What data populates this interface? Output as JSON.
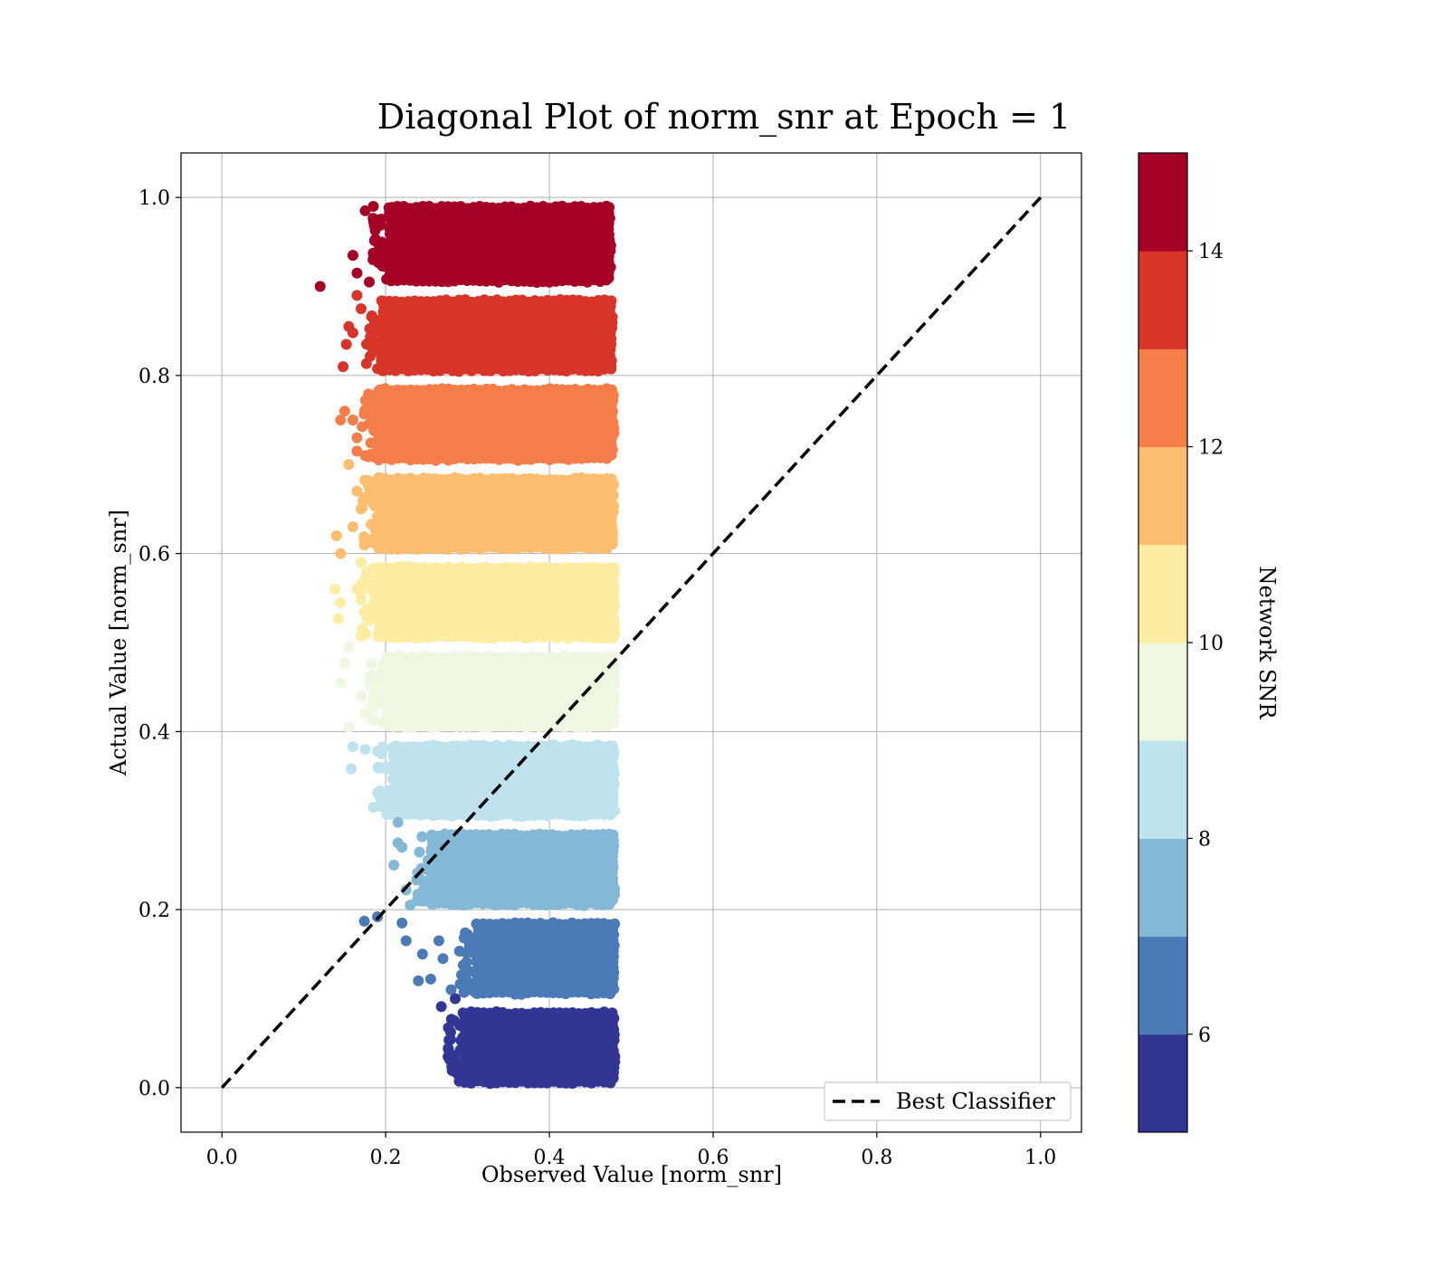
{
  "chart_data": {
    "type": "scatter",
    "title": "Diagonal Plot of norm_snr at Epoch = 1",
    "xlabel": "Observed Value [norm_snr]",
    "ylabel": "Actual Value [norm_snr]",
    "xlim": [
      -0.05,
      1.05
    ],
    "ylim": [
      -0.05,
      1.05
    ],
    "xticks": [
      "0.0",
      "0.2",
      "0.4",
      "0.6",
      "0.8",
      "1.0"
    ],
    "yticks": [
      "0.0",
      "0.2",
      "0.4",
      "0.6",
      "0.8",
      "1.0"
    ],
    "grid": true,
    "colorbar": {
      "label": "Network SNR",
      "range": [
        5,
        15
      ],
      "ticks": [
        "6",
        "8",
        "10",
        "12",
        "14"
      ],
      "colormap": "RdYlBu_r",
      "colors": [
        "#313695",
        "#4a7bb7",
        "#83b8d7",
        "#bfe3ee",
        "#eef7df",
        "#fdeda2",
        "#fdbe70",
        "#f57d4a",
        "#d7352a",
        "#a50026"
      ]
    },
    "bands": [
      {
        "snr_range": [
          5,
          6
        ],
        "y_range": [
          0.0,
          0.09
        ],
        "x_range": [
          0.29,
          0.485
        ],
        "color": "#313695"
      },
      {
        "snr_range": [
          6,
          7
        ],
        "y_range": [
          0.1,
          0.19
        ],
        "x_range": [
          0.305,
          0.485
        ],
        "color": "#4a7bb7"
      },
      {
        "snr_range": [
          7,
          8
        ],
        "y_range": [
          0.2,
          0.29
        ],
        "x_range": [
          0.25,
          0.485
        ],
        "color": "#83b8d7"
      },
      {
        "snr_range": [
          8,
          9
        ],
        "y_range": [
          0.3,
          0.39
        ],
        "x_range": [
          0.205,
          0.485
        ],
        "color": "#bfe3ee"
      },
      {
        "snr_range": [
          9,
          10
        ],
        "y_range": [
          0.4,
          0.49
        ],
        "x_range": [
          0.195,
          0.485
        ],
        "color": "#eef7df"
      },
      {
        "snr_range": [
          10,
          11
        ],
        "y_range": [
          0.5,
          0.59
        ],
        "x_range": [
          0.185,
          0.485
        ],
        "color": "#fdeda2"
      },
      {
        "snr_range": [
          11,
          12
        ],
        "y_range": [
          0.6,
          0.69
        ],
        "x_range": [
          0.185,
          0.484
        ],
        "color": "#fdbe70"
      },
      {
        "snr_range": [
          12,
          13
        ],
        "y_range": [
          0.7,
          0.79
        ],
        "x_range": [
          0.185,
          0.484
        ],
        "color": "#f57d4a"
      },
      {
        "snr_range": [
          13,
          14
        ],
        "y_range": [
          0.8,
          0.89
        ],
        "x_range": [
          0.19,
          0.482
        ],
        "color": "#d7352a"
      },
      {
        "snr_range": [
          14,
          15
        ],
        "y_range": [
          0.9,
          0.995
        ],
        "x_range": [
          0.2,
          0.48
        ],
        "color": "#a50026"
      }
    ],
    "outliers": [
      {
        "x": 0.12,
        "y": 0.9,
        "color": "#a50026"
      },
      {
        "x": 0.16,
        "y": 0.935,
        "color": "#a50026"
      },
      {
        "x": 0.165,
        "y": 0.915,
        "color": "#a50026"
      },
      {
        "x": 0.175,
        "y": 0.985,
        "color": "#a50026"
      },
      {
        "x": 0.18,
        "y": 0.905,
        "color": "#a50026"
      },
      {
        "x": 0.185,
        "y": 0.99,
        "color": "#a50026"
      },
      {
        "x": 0.148,
        "y": 0.81,
        "color": "#d7352a"
      },
      {
        "x": 0.152,
        "y": 0.835,
        "color": "#d7352a"
      },
      {
        "x": 0.155,
        "y": 0.855,
        "color": "#d7352a"
      },
      {
        "x": 0.16,
        "y": 0.848,
        "color": "#d7352a"
      },
      {
        "x": 0.165,
        "y": 0.89,
        "color": "#d7352a"
      },
      {
        "x": 0.17,
        "y": 0.875,
        "color": "#d7352a"
      },
      {
        "x": 0.145,
        "y": 0.75,
        "color": "#f57d4a"
      },
      {
        "x": 0.15,
        "y": 0.76,
        "color": "#f57d4a"
      },
      {
        "x": 0.16,
        "y": 0.75,
        "color": "#f57d4a"
      },
      {
        "x": 0.165,
        "y": 0.73,
        "color": "#f57d4a"
      },
      {
        "x": 0.165,
        "y": 0.715,
        "color": "#f57d4a"
      },
      {
        "x": 0.175,
        "y": 0.71,
        "color": "#f57d4a"
      },
      {
        "x": 0.155,
        "y": 0.7,
        "color": "#fdbe70"
      },
      {
        "x": 0.14,
        "y": 0.62,
        "color": "#fdbe70"
      },
      {
        "x": 0.145,
        "y": 0.6,
        "color": "#fdbe70"
      },
      {
        "x": 0.16,
        "y": 0.63,
        "color": "#fdbe70"
      },
      {
        "x": 0.165,
        "y": 0.67,
        "color": "#fdbe70"
      },
      {
        "x": 0.17,
        "y": 0.65,
        "color": "#fdbe70"
      },
      {
        "x": 0.138,
        "y": 0.56,
        "color": "#fdeda2"
      },
      {
        "x": 0.142,
        "y": 0.527,
        "color": "#fdeda2"
      },
      {
        "x": 0.145,
        "y": 0.545,
        "color": "#fdeda2"
      },
      {
        "x": 0.165,
        "y": 0.56,
        "color": "#fdeda2"
      },
      {
        "x": 0.17,
        "y": 0.59,
        "color": "#fdeda2"
      },
      {
        "x": 0.145,
        "y": 0.455,
        "color": "#eef7df"
      },
      {
        "x": 0.15,
        "y": 0.477,
        "color": "#eef7df"
      },
      {
        "x": 0.155,
        "y": 0.495,
        "color": "#eef7df"
      },
      {
        "x": 0.155,
        "y": 0.405,
        "color": "#eef7df"
      },
      {
        "x": 0.17,
        "y": 0.44,
        "color": "#eef7df"
      },
      {
        "x": 0.175,
        "y": 0.42,
        "color": "#eef7df"
      },
      {
        "x": 0.158,
        "y": 0.358,
        "color": "#bfe3ee"
      },
      {
        "x": 0.16,
        "y": 0.383,
        "color": "#bfe3ee"
      },
      {
        "x": 0.175,
        "y": 0.38,
        "color": "#bfe3ee"
      },
      {
        "x": 0.185,
        "y": 0.315,
        "color": "#bfe3ee"
      },
      {
        "x": 0.19,
        "y": 0.378,
        "color": "#bfe3ee"
      },
      {
        "x": 0.195,
        "y": 0.32,
        "color": "#bfe3ee"
      },
      {
        "x": 0.21,
        "y": 0.25,
        "color": "#83b8d7"
      },
      {
        "x": 0.215,
        "y": 0.275,
        "color": "#83b8d7"
      },
      {
        "x": 0.22,
        "y": 0.27,
        "color": "#83b8d7"
      },
      {
        "x": 0.225,
        "y": 0.222,
        "color": "#83b8d7"
      },
      {
        "x": 0.23,
        "y": 0.205,
        "color": "#83b8d7"
      },
      {
        "x": 0.215,
        "y": 0.298,
        "color": "#83b8d7"
      },
      {
        "x": 0.174,
        "y": 0.187,
        "color": "#4a7bb7"
      },
      {
        "x": 0.19,
        "y": 0.192,
        "color": "#4a7bb7"
      },
      {
        "x": 0.22,
        "y": 0.185,
        "color": "#4a7bb7"
      },
      {
        "x": 0.225,
        "y": 0.165,
        "color": "#4a7bb7"
      },
      {
        "x": 0.24,
        "y": 0.12,
        "color": "#4a7bb7"
      },
      {
        "x": 0.245,
        "y": 0.15,
        "color": "#4a7bb7"
      },
      {
        "x": 0.255,
        "y": 0.122,
        "color": "#4a7bb7"
      },
      {
        "x": 0.27,
        "y": 0.145,
        "color": "#4a7bb7"
      },
      {
        "x": 0.265,
        "y": 0.165,
        "color": "#4a7bb7"
      },
      {
        "x": 0.28,
        "y": 0.11,
        "color": "#4a7bb7"
      },
      {
        "x": 0.268,
        "y": 0.091,
        "color": "#313695"
      },
      {
        "x": 0.285,
        "y": 0.1,
        "color": "#313695"
      },
      {
        "x": 0.298,
        "y": 0.07,
        "color": "#313695"
      },
      {
        "x": 0.3,
        "y": 0.055,
        "color": "#313695"
      },
      {
        "x": 0.302,
        "y": 0.038,
        "color": "#313695"
      },
      {
        "x": 0.31,
        "y": 0.045,
        "color": "#313695"
      },
      {
        "x": 0.318,
        "y": 0.02,
        "color": "#313695"
      },
      {
        "x": 0.33,
        "y": 0.01,
        "color": "#313695"
      }
    ],
    "reference_line": {
      "x": [
        0.0,
        1.0
      ],
      "y": [
        0.0,
        1.0
      ],
      "style": "dashed",
      "color": "#000000"
    },
    "legend": {
      "placement": "lower-right",
      "entries": [
        "Best Classifier"
      ]
    }
  }
}
